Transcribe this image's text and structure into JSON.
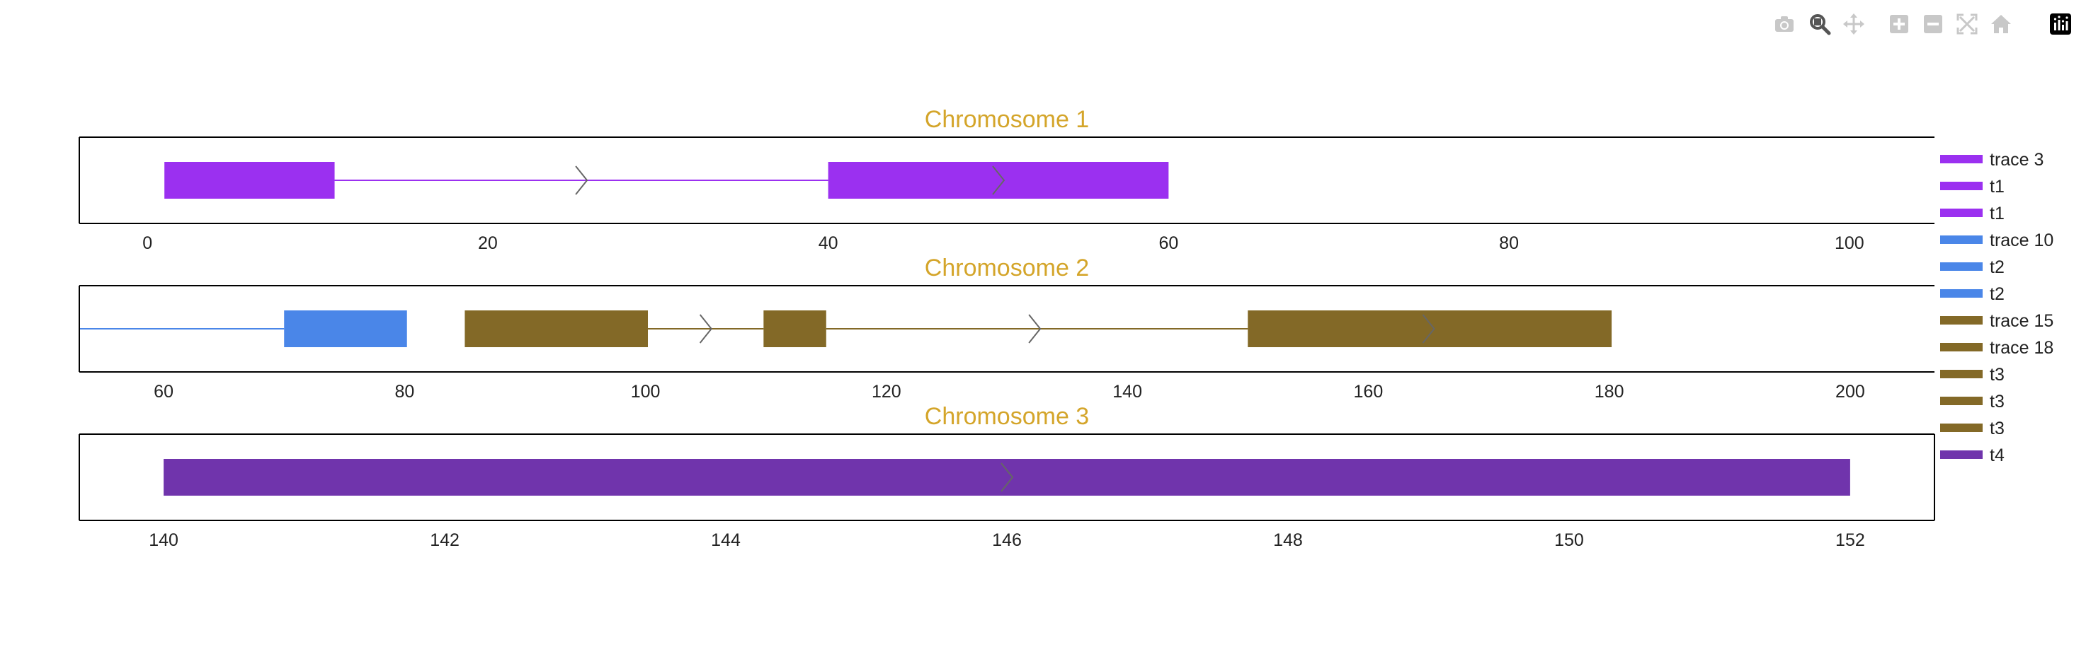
{
  "modebar": {
    "buttons": [
      {
        "name": "camera-icon",
        "label": "Download plot as png"
      },
      {
        "name": "zoom-icon",
        "label": "Zoom"
      },
      {
        "name": "pan-icon",
        "label": "Pan"
      },
      {
        "name": "zoom-in-icon",
        "label": "Zoom in"
      },
      {
        "name": "zoom-out-icon",
        "label": "Zoom out"
      },
      {
        "name": "autoscale-icon",
        "label": "Autoscale"
      },
      {
        "name": "reset-axes-icon",
        "label": "Reset axes"
      },
      {
        "name": "plotly-logo-icon",
        "label": "Produced with Plotly"
      }
    ],
    "active": "zoom-icon"
  },
  "colors": {
    "title": "#D4A52A",
    "purple": "#9B30F0",
    "blue": "#4A86E8",
    "olive": "#836927",
    "dark_purple": "#7034AC",
    "arrow": "#666666",
    "axis": "#000000",
    "modebar_icon": "#C8C8C8",
    "modebar_active": "#555555"
  },
  "chart_data": [
    {
      "type": "gene-track",
      "title": "Chromosome 1",
      "xlim": [
        -4,
        105
      ],
      "xticks": [
        0,
        20,
        40,
        60,
        80,
        100
      ],
      "features": [
        {
          "trace": "trace 3",
          "kind": "line",
          "start": 11,
          "end": 40,
          "color": "purple"
        },
        {
          "trace": "t1",
          "kind": "exon",
          "start": 1,
          "end": 11,
          "color": "purple"
        },
        {
          "trace": "t1",
          "kind": "exon",
          "start": 40,
          "end": 60,
          "color": "purple"
        }
      ],
      "arrows": [
        {
          "x": 25.5,
          "color": "arrow"
        },
        {
          "x": 50,
          "color": "arrow"
        }
      ]
    },
    {
      "type": "gene-track",
      "title": "Chromosome 2",
      "xlim": [
        53,
        207
      ],
      "xticks": [
        60,
        80,
        100,
        120,
        140,
        160,
        180,
        200
      ],
      "features": [
        {
          "trace": "trace 10",
          "kind": "line",
          "start": 53,
          "end": 70,
          "color": "blue"
        },
        {
          "trace": "t2",
          "kind": "exon",
          "start": 70,
          "end": 80.2,
          "color": "blue"
        },
        {
          "trace": "trace 15",
          "kind": "line",
          "start": 100.2,
          "end": 109.8,
          "color": "olive"
        },
        {
          "trace": "trace 18",
          "kind": "line",
          "start": 115,
          "end": 150,
          "color": "olive"
        },
        {
          "trace": "t3",
          "kind": "exon",
          "start": 85,
          "end": 100.2,
          "color": "olive"
        },
        {
          "trace": "t3",
          "kind": "exon",
          "start": 109.8,
          "end": 115,
          "color": "olive"
        },
        {
          "trace": "t3",
          "kind": "exon",
          "start": 150,
          "end": 180.2,
          "color": "olive"
        }
      ],
      "arrows": [
        {
          "x": 105,
          "color": "arrow"
        },
        {
          "x": 132.3,
          "color": "arrow"
        },
        {
          "x": 165,
          "color": "arrow"
        }
      ]
    },
    {
      "type": "gene-track",
      "title": "Chromosome 3",
      "xlim": [
        139.4,
        152.6
      ],
      "xticks": [
        140,
        142,
        144,
        146,
        148,
        150,
        152
      ],
      "features": [
        {
          "trace": "t4",
          "kind": "exon",
          "start": 140,
          "end": 152,
          "color": "dark_purple"
        }
      ],
      "arrows": [
        {
          "x": 146,
          "color": "arrow"
        }
      ]
    }
  ],
  "legend": {
    "placement": "right",
    "items": [
      {
        "label": "trace 3",
        "color": "purple"
      },
      {
        "label": "t1",
        "color": "purple"
      },
      {
        "label": "t1",
        "color": "purple"
      },
      {
        "label": "trace 10",
        "color": "blue"
      },
      {
        "label": "t2",
        "color": "blue"
      },
      {
        "label": "t2",
        "color": "blue"
      },
      {
        "label": "trace 15",
        "color": "olive"
      },
      {
        "label": "trace 18",
        "color": "olive"
      },
      {
        "label": "t3",
        "color": "olive"
      },
      {
        "label": "t3",
        "color": "olive"
      },
      {
        "label": "t3",
        "color": "olive"
      },
      {
        "label": "t4",
        "color": "dark_purple"
      }
    ]
  }
}
